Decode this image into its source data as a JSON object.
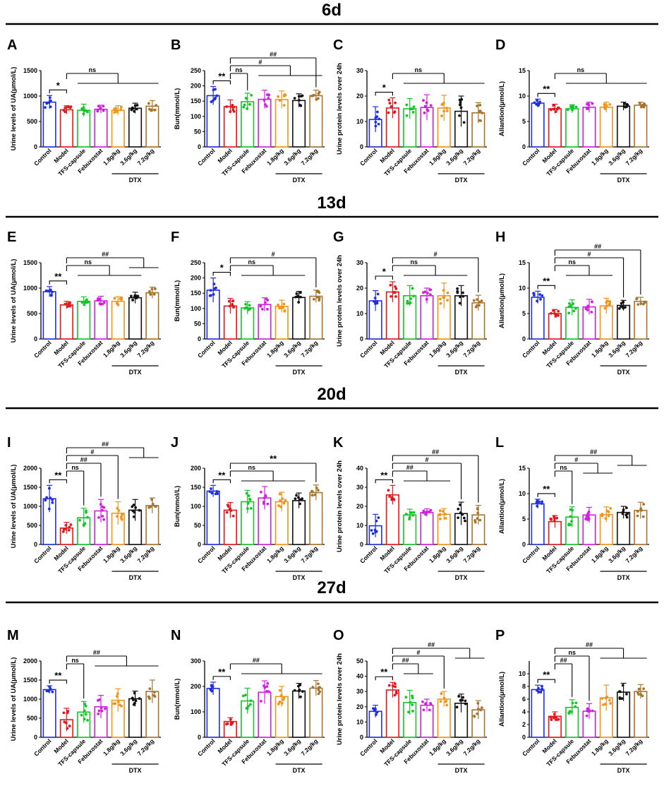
{
  "figure": {
    "sections": [
      "6d",
      "13d",
      "20d",
      "27d"
    ],
    "categories": [
      "Control",
      "Model",
      "TFS-capsule",
      "Febuxostat",
      "1.8g/kg",
      "3.6g/kg",
      "7.2g/kg"
    ],
    "group_label": "DTX",
    "colors": [
      "#1f2fe0",
      "#e8151b",
      "#16c42a",
      "#d21ee0",
      "#f2941a",
      "#111111",
      "#a8742c"
    ]
  },
  "chart_data": [
    {
      "panel": "A",
      "type": "bar",
      "ylabel": "Urine levels of UA(μmol/L)",
      "ylim": [
        0,
        1500
      ],
      "yticks": [
        0,
        500,
        1000,
        1500
      ],
      "values": [
        880,
        730,
        720,
        740,
        720,
        760,
        800
      ],
      "errors": [
        130,
        80,
        120,
        80,
        90,
        100,
        110
      ],
      "annotations": [
        {
          "label": "*",
          "from": 0,
          "to": 1
        },
        {
          "label": "ns",
          "from": 1,
          "to": [
            2,
            3,
            4,
            5,
            6
          ]
        }
      ]
    },
    {
      "panel": "B",
      "type": "bar",
      "ylabel": "Bun(mmol/L)",
      "ylim": [
        0,
        250
      ],
      "yticks": [
        0,
        50,
        100,
        150,
        200,
        250
      ],
      "values": [
        168,
        132,
        148,
        156,
        155,
        152,
        168
      ],
      "errors": [
        30,
        22,
        28,
        30,
        28,
        22,
        18
      ],
      "annotations": [
        {
          "label": "**",
          "from": 0,
          "to": 1
        },
        {
          "label": "ns",
          "from": 1,
          "to": [
            2
          ]
        },
        {
          "label": "#",
          "from": 1,
          "to": [
            3,
            4,
            5,
            6
          ]
        },
        {
          "label": "##",
          "from": 1,
          "to": [
            6
          ]
        }
      ]
    },
    {
      "panel": "C",
      "type": "bar",
      "ylabel": "Urine protein levels over 24h",
      "ylim": [
        0,
        30
      ],
      "yticks": [
        0,
        10,
        20,
        30
      ],
      "values": [
        10.8,
        15.3,
        15,
        15.5,
        15.3,
        14,
        13.4
      ],
      "errors": [
        5,
        4,
        4,
        5,
        5,
        6,
        4
      ],
      "annotations": [
        {
          "label": "*",
          "from": 0,
          "to": 1
        },
        {
          "label": "ns",
          "from": 1,
          "to": [
            2,
            3,
            4,
            5,
            6
          ]
        }
      ]
    },
    {
      "panel": "D",
      "type": "bar",
      "ylabel": "Allantion(μmol/L)",
      "ylim": [
        0,
        15
      ],
      "yticks": [
        0,
        5,
        10,
        15
      ],
      "values": [
        8.6,
        7.5,
        7.5,
        7.8,
        7.8,
        8,
        8.2
      ],
      "errors": [
        0.8,
        0.9,
        0.8,
        1,
        1,
        0.8,
        0.6
      ],
      "annotations": [
        {
          "label": "**",
          "from": 0,
          "to": 1
        },
        {
          "label": "ns",
          "from": 1,
          "to": [
            2,
            3,
            4,
            5,
            6
          ]
        }
      ]
    },
    {
      "panel": "E",
      "type": "bar",
      "ylabel": "Urine levels of UA(μmol/L)",
      "ylim": [
        0,
        1500
      ],
      "yticks": [
        0,
        500,
        1000,
        1500
      ],
      "values": [
        930,
        670,
        740,
        750,
        740,
        810,
        910
      ],
      "errors": [
        100,
        70,
        90,
        90,
        90,
        110,
        110
      ],
      "annotations": [
        {
          "label": "**",
          "from": 0,
          "to": 1
        },
        {
          "label": "ns",
          "from": 1,
          "to": [
            2,
            3,
            4,
            5
          ]
        },
        {
          "label": "##",
          "from": 1,
          "to": [
            5,
            6
          ]
        }
      ]
    },
    {
      "panel": "F",
      "type": "bar",
      "ylabel": "Bun(mmol/L)",
      "ylim": [
        0,
        250
      ],
      "yticks": [
        0,
        50,
        100,
        150,
        200,
        250
      ],
      "values": [
        160,
        108,
        102,
        113,
        107,
        136,
        140
      ],
      "errors": [
        40,
        25,
        20,
        22,
        20,
        20,
        20
      ],
      "annotations": [
        {
          "label": "*",
          "from": 0,
          "to": 1
        },
        {
          "label": "ns",
          "from": 1,
          "to": [
            2,
            3,
            4,
            5
          ]
        },
        {
          "label": "#",
          "from": 1,
          "to": [
            6
          ]
        }
      ]
    },
    {
      "panel": "G",
      "type": "bar",
      "ylabel": "Urine protein levels over 24h",
      "ylim": [
        0,
        30
      ],
      "yticks": [
        0,
        10,
        20,
        30
      ],
      "values": [
        15,
        18.5,
        17,
        17,
        17,
        17,
        14.2
      ],
      "errors": [
        4,
        4,
        4,
        3,
        5,
        4,
        3
      ],
      "annotations": [
        {
          "label": "*",
          "from": 0,
          "to": 1
        },
        {
          "label": "ns",
          "from": 1,
          "to": [
            2,
            3,
            4,
            5
          ]
        },
        {
          "label": "#",
          "from": 1,
          "to": [
            6
          ]
        }
      ]
    },
    {
      "panel": "H",
      "type": "bar",
      "ylabel": "Allantion(μmol/L)",
      "ylim": [
        0,
        15
      ],
      "yticks": [
        0,
        5,
        10,
        15
      ],
      "values": [
        8.2,
        5,
        6.2,
        6.3,
        6.5,
        6.6,
        7.4
      ],
      "errors": [
        1.2,
        0.8,
        1.5,
        1.5,
        1.5,
        1,
        0.8
      ],
      "annotations": [
        {
          "label": "**",
          "from": 0,
          "to": 1
        },
        {
          "label": "ns",
          "from": 1,
          "to": [
            2,
            3,
            4
          ]
        },
        {
          "label": "#",
          "from": 1,
          "to": [
            5
          ]
        },
        {
          "label": "##",
          "from": 1,
          "to": [
            6
          ]
        }
      ]
    },
    {
      "panel": "I",
      "type": "bar",
      "ylabel": "Urine levels of UA(μmol/L)",
      "ylim": [
        0,
        2000
      ],
      "yticks": [
        0,
        500,
        1000,
        1500,
        2000
      ],
      "values": [
        1200,
        430,
        700,
        880,
        820,
        900,
        1020
      ],
      "errors": [
        350,
        150,
        250,
        300,
        300,
        280,
        200
      ],
      "annotations": [
        {
          "label": "**",
          "from": 0,
          "to": 1
        },
        {
          "label": "ns",
          "from": 1,
          "to": [
            2
          ]
        },
        {
          "label": "##",
          "from": 1,
          "to": [
            3
          ]
        },
        {
          "label": "#",
          "from": 1,
          "to": [
            4
          ]
        },
        {
          "label": "##",
          "from": 1,
          "to": [
            5,
            6
          ]
        }
      ]
    },
    {
      "panel": "J",
      "type": "bar",
      "ylabel": "Bun(mmol/L)",
      "ylim": [
        0,
        200
      ],
      "yticks": [
        0,
        50,
        100,
        150,
        200
      ],
      "values": [
        140,
        90,
        112,
        122,
        112,
        115,
        136
      ],
      "errors": [
        15,
        20,
        30,
        30,
        25,
        20,
        20
      ],
      "annotations": [
        {
          "label": "**",
          "from": 0,
          "to": 1
        },
        {
          "label": "ns",
          "from": 1,
          "to": [
            2,
            3,
            4,
            5
          ]
        },
        {
          "label": "**",
          "from": 1,
          "to": [
            6
          ]
        }
      ]
    },
    {
      "panel": "K",
      "type": "bar",
      "ylabel": "Urine protein levels over 24h",
      "ylim": [
        0,
        40
      ],
      "yticks": [
        0,
        10,
        20,
        30,
        40
      ],
      "values": [
        9.8,
        26,
        15.5,
        16.7,
        15.8,
        16.2,
        15.5
      ],
      "errors": [
        6,
        5,
        3,
        2,
        3,
        6,
        5
      ],
      "annotations": [
        {
          "label": "**",
          "from": 0,
          "to": 1
        },
        {
          "label": "##",
          "from": 1,
          "to": [
            2,
            3,
            4
          ]
        },
        {
          "label": "#",
          "from": 1,
          "to": [
            5
          ]
        },
        {
          "label": "##",
          "from": 1,
          "to": [
            6
          ]
        }
      ]
    },
    {
      "panel": "L",
      "type": "bar",
      "ylabel": "Allantion(μmol/L)",
      "ylim": [
        0,
        15
      ],
      "yticks": [
        0,
        5,
        10,
        15
      ],
      "values": [
        8,
        4.5,
        5.4,
        5.8,
        5.9,
        6.3,
        6.7
      ],
      "errors": [
        0.9,
        1.2,
        2,
        1.5,
        1.5,
        1.2,
        1.6
      ],
      "annotations": [
        {
          "label": "**",
          "from": 0,
          "to": 1
        },
        {
          "label": "ns",
          "from": 1,
          "to": [
            2
          ]
        },
        {
          "label": "#",
          "from": 1,
          "to": [
            3,
            4
          ]
        },
        {
          "label": "##",
          "from": 1,
          "to": [
            5,
            6
          ]
        }
      ]
    },
    {
      "panel": "M",
      "type": "bar",
      "ylabel": "Urine levels of UA(μmol/L)",
      "ylim": [
        0,
        2000
      ],
      "yticks": [
        0,
        500,
        1000,
        1500,
        2000
      ],
      "values": [
        1250,
        460,
        660,
        800,
        970,
        1010,
        1200
      ],
      "errors": [
        100,
        300,
        280,
        300,
        300,
        200,
        300
      ],
      "annotations": [
        {
          "label": "**",
          "from": 0,
          "to": 1
        },
        {
          "label": "ns",
          "from": 1,
          "to": [
            2
          ]
        },
        {
          "label": "##",
          "from": 1,
          "to": [
            3,
            4,
            5,
            6
          ]
        }
      ]
    },
    {
      "panel": "N",
      "type": "bar",
      "ylabel": "Bun(mmol/L)",
      "ylim": [
        0,
        300
      ],
      "yticks": [
        0,
        100,
        200,
        300
      ],
      "values": [
        192,
        62,
        143,
        177,
        160,
        182,
        193
      ],
      "errors": [
        25,
        15,
        50,
        45,
        40,
        30,
        30
      ],
      "annotations": [
        {
          "label": "**",
          "from": 0,
          "to": 1
        },
        {
          "label": "##",
          "from": 1,
          "to": [
            2,
            3,
            4,
            5,
            6
          ]
        }
      ]
    },
    {
      "panel": "O",
      "type": "bar",
      "ylabel": "Urine protein levels over 24h",
      "ylim": [
        0,
        50
      ],
      "yticks": [
        0,
        10,
        20,
        30,
        40,
        50
      ],
      "values": [
        17,
        31,
        22.8,
        21,
        25,
        22.3,
        18
      ],
      "errors": [
        4,
        5,
        8,
        4,
        5,
        6,
        6
      ],
      "annotations": [
        {
          "label": "**",
          "from": 0,
          "to": 1
        },
        {
          "label": "##",
          "from": 1,
          "to": [
            2,
            3
          ]
        },
        {
          "label": "#",
          "from": 1,
          "to": [
            4
          ]
        },
        {
          "label": "##",
          "from": 1,
          "to": [
            5,
            6
          ]
        }
      ]
    },
    {
      "panel": "P",
      "type": "bar",
      "ylabel": "Allantion(μmol/L)",
      "ylim": [
        0,
        12
      ],
      "yticks": [
        0,
        2,
        4,
        6,
        8,
        10
      ],
      "values": [
        7.5,
        3.3,
        4.7,
        4.1,
        6.2,
        7.1,
        7.2
      ],
      "errors": [
        0.7,
        0.7,
        1.2,
        1.2,
        2,
        1.4,
        1.1
      ],
      "annotations": [
        {
          "label": "**",
          "from": 0,
          "to": 1
        },
        {
          "label": "##",
          "from": 1,
          "to": [
            2
          ]
        },
        {
          "label": "ns",
          "from": 1,
          "to": [
            3
          ]
        },
        {
          "label": "##",
          "from": 1,
          "to": [
            4,
            5,
            6
          ]
        }
      ]
    }
  ]
}
